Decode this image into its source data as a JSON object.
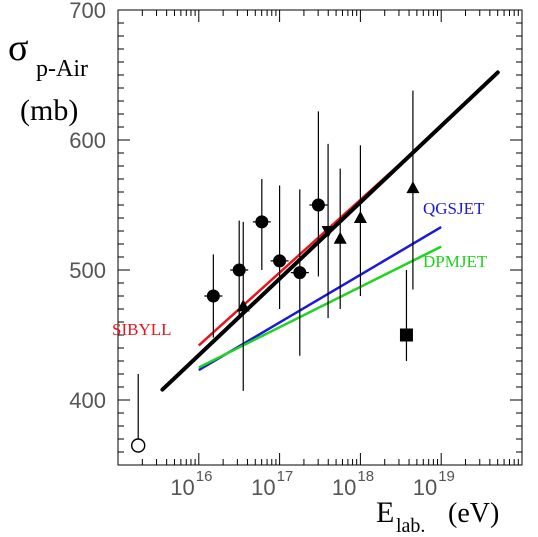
{
  "chart_data": {
    "type": "scatter",
    "title": "",
    "ylabel": {
      "symbol": "σ",
      "subscript": "p-Air",
      "unit": "(mb)"
    },
    "xlabel": {
      "main": "E",
      "subscript": "lab.",
      "unit": "(eV)"
    },
    "xscale": "log",
    "xlim": [
      1000000000000000.0,
      1e+20
    ],
    "ylim": [
      350,
      700
    ],
    "yticks": [
      {
        "value": 400,
        "label": "400"
      },
      {
        "value": 500,
        "label": "500"
      },
      {
        "value": 600,
        "label": "600"
      },
      {
        "value": 700,
        "label": "700"
      }
    ],
    "xticks": [
      {
        "exp": 16,
        "base": "10",
        "sup": "16"
      },
      {
        "exp": 17,
        "base": "10",
        "sup": "17"
      },
      {
        "exp": 18,
        "base": "10",
        "sup": "18"
      },
      {
        "exp": 19,
        "base": "10",
        "sup": "19"
      }
    ],
    "grid": false,
    "models": [
      {
        "name": "SIBYLL",
        "color": "#e8141c",
        "points": [
          [
            16.0,
            442
          ],
          [
            19.0,
            610
          ]
        ]
      },
      {
        "name": "QGSJET",
        "color": "#1a1ad6",
        "points": [
          [
            16.0,
            423
          ],
          [
            19.0,
            533
          ]
        ]
      },
      {
        "name": "DPMJET",
        "color": "#1ed41e",
        "points": [
          [
            16.0,
            425
          ],
          [
            19.0,
            518
          ]
        ]
      }
    ],
    "fit": {
      "color": "#000000",
      "points": [
        [
          15.55,
          408
        ],
        [
          19.7,
          652
        ]
      ]
    },
    "data_series": [
      {
        "marker": "circle-filled",
        "points": [
          {
            "x": 16.18,
            "y": 480,
            "ylo": 448,
            "yhi": 512
          },
          {
            "x": 16.5,
            "y": 500,
            "ylo": 462,
            "yhi": 538
          },
          {
            "x": 16.78,
            "y": 537,
            "ylo": 500,
            "yhi": 570
          },
          {
            "x": 17.0,
            "y": 507,
            "ylo": 470,
            "yhi": 565
          },
          {
            "x": 17.25,
            "y": 498,
            "ylo": 434,
            "yhi": 562
          },
          {
            "x": 17.48,
            "y": 550,
            "ylo": 495,
            "yhi": 622
          }
        ]
      },
      {
        "marker": "triangle-up",
        "points": [
          {
            "x": 16.55,
            "y": 472,
            "ylo": 407,
            "yhi": 537
          },
          {
            "x": 17.75,
            "y": 524,
            "ylo": 470,
            "yhi": 578
          },
          {
            "x": 18.0,
            "y": 540,
            "ylo": 480,
            "yhi": 596
          },
          {
            "x": 18.65,
            "y": 563,
            "ylo": 485,
            "yhi": 638
          }
        ]
      },
      {
        "marker": "triangle-down",
        "points": [
          {
            "x": 17.6,
            "y": 530,
            "ylo": 463,
            "yhi": 597
          }
        ]
      },
      {
        "marker": "square-filled",
        "points": [
          {
            "x": 18.57,
            "y": 450,
            "ylo": 430,
            "yhi": 500
          }
        ]
      },
      {
        "marker": "circle-open",
        "points": [
          {
            "x": 15.25,
            "y": 365,
            "ylo": 365,
            "yhi": 420
          }
        ]
      }
    ]
  }
}
